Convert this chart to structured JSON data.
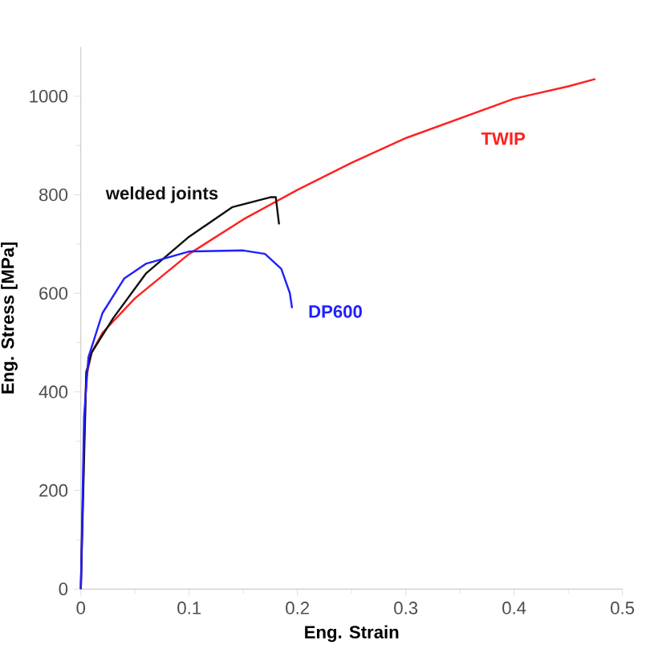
{
  "chart_data": {
    "type": "line",
    "xlabel": "Eng. Strain",
    "ylabel": "Eng. Stress [MPa]",
    "xlim": [
      0,
      0.5
    ],
    "ylim": [
      0,
      1100
    ],
    "xticks": [
      0,
      0.1,
      0.2,
      0.3,
      0.4,
      0.5
    ],
    "yticks": [
      0,
      200,
      400,
      600,
      800,
      1000
    ],
    "grid": false,
    "legend": false,
    "marker": "none",
    "line_style": "solid",
    "series": [
      {
        "name": "TWIP",
        "color": "#ff2020",
        "x": [
          0,
          0.003,
          0.005,
          0.01,
          0.02,
          0.05,
          0.1,
          0.15,
          0.2,
          0.25,
          0.3,
          0.35,
          0.4,
          0.45,
          0.475
        ],
        "values": [
          0,
          300,
          430,
          480,
          520,
          590,
          680,
          750,
          810,
          865,
          915,
          955,
          995,
          1020,
          1035
        ]
      },
      {
        "name": "welded joints",
        "color": "#111111",
        "x": [
          0,
          0.005,
          0.01,
          0.03,
          0.06,
          0.1,
          0.14,
          0.175,
          0.18,
          0.183
        ],
        "values": [
          0,
          440,
          480,
          550,
          640,
          715,
          775,
          795,
          795,
          740
        ]
      },
      {
        "name": "DP600",
        "color": "#2020ff",
        "x": [
          0,
          0.003,
          0.007,
          0.02,
          0.04,
          0.06,
          0.1,
          0.15,
          0.17,
          0.185,
          0.193,
          0.195
        ],
        "values": [
          0,
          350,
          470,
          560,
          630,
          660,
          685,
          687,
          680,
          650,
          600,
          570
        ]
      }
    ]
  }
}
